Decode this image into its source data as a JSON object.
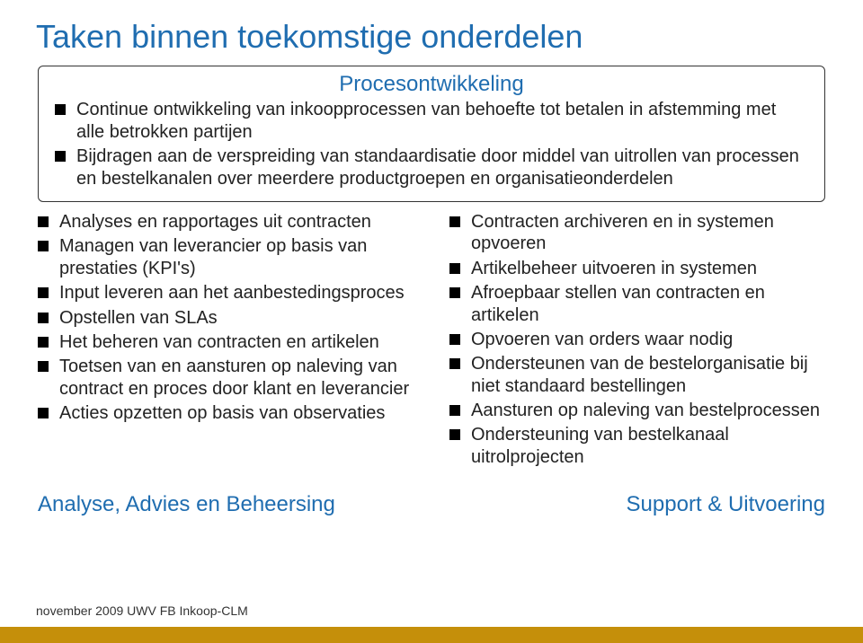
{
  "title": "Taken binnen toekomstige onderdelen",
  "colors": {
    "title_color": "#1f6db0",
    "section_header_color": "#1f6db0",
    "bullet_color": "#000000",
    "body_text_color": "#222222",
    "box_border_color": "#333333",
    "bottom_band_color": "#c58f0a",
    "background_color": "#ffffff"
  },
  "typography": {
    "title_fontsize": 36,
    "section_header_fontsize": 24,
    "body_fontsize": 20,
    "footer_label_fontsize": 24,
    "footer_small_fontsize": 14,
    "font_family": "Arial"
  },
  "top_section": {
    "header": "Procesontwikkeling",
    "items": [
      "Continue ontwikkeling van inkoopprocessen van behoefte tot betalen in afstemming met alle betrokken partijen",
      "Bijdragen aan de verspreiding van standaardisatie door middel van uitrollen van processen en bestelkanalen over meerdere productgroepen en organisatieonderdelen"
    ]
  },
  "left_column": {
    "items": [
      "Analyses en rapportages uit contracten",
      "Managen van leverancier op basis van prestaties (KPI's)",
      "Input leveren aan het aanbestedingsproces",
      "Opstellen van SLAs",
      "Het beheren van contracten en artikelen",
      "Toetsen van en aansturen op naleving van contract en proces door klant en leverancier",
      "Acties opzetten op basis van observaties"
    ],
    "footer_label": "Analyse, Advies en Beheersing"
  },
  "right_column": {
    "items": [
      "Contracten archiveren en in systemen opvoeren",
      "Artikelbeheer uitvoeren in systemen",
      "Afroepbaar stellen van contracten en artikelen",
      "Opvoeren van orders waar nodig",
      "Ondersteunen van de bestelorganisatie bij niet standaard bestellingen",
      "Aansturen op naleving van bestelprocessen",
      "Ondersteuning van bestelkanaal uitrolprojecten"
    ],
    "footer_label": "Support & Uitvoering"
  },
  "footer_text": "november 2009 UWV FB Inkoop-CLM"
}
